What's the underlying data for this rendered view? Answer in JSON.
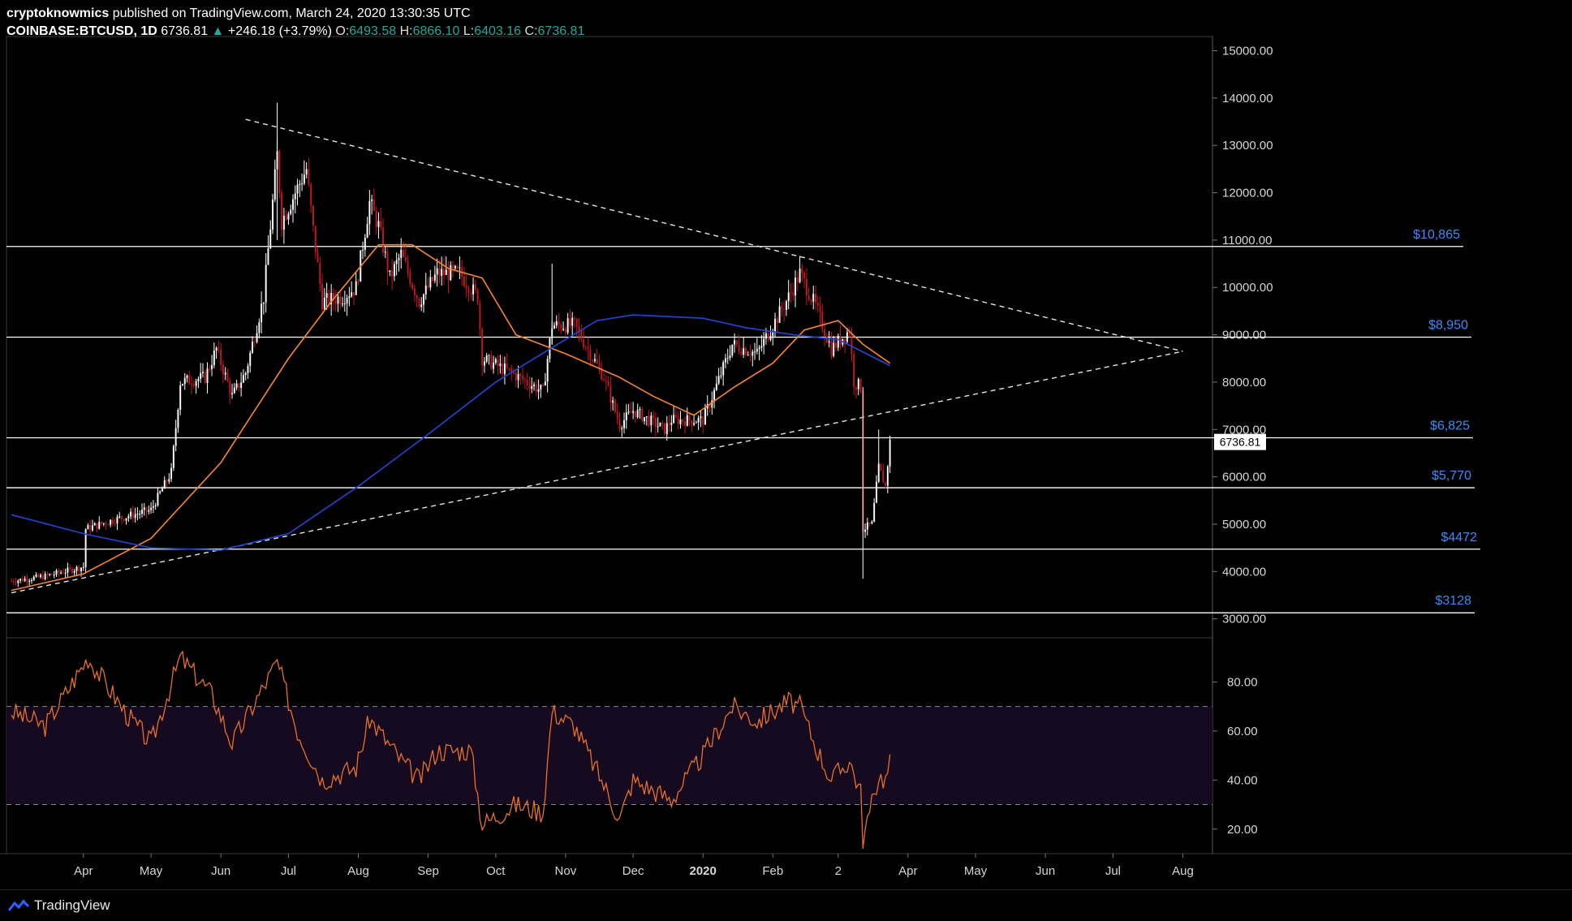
{
  "header": {
    "publisher": "cryptoknowmics",
    "published_text": "published on TradingView.com, March 24, 2020 13:30:35 UTC",
    "symbol": "COINBASE:BTCUSD, 1D",
    "last": "6736.81",
    "change_arrow": "▲",
    "change": "+246.18 (+3.79%)",
    "o_label": "O:",
    "o_value": "6493.58",
    "h_label": "H:",
    "h_value": "6866.10",
    "l_label": "L:",
    "l_value": "6403.16",
    "c_label": "C:",
    "c_value": "6736.81"
  },
  "footer": {
    "brand": "TradingView",
    "logo_icon": "tradingview-logo-icon"
  },
  "colors": {
    "background": "#000000",
    "up_candle": "#ffffff",
    "down_candle": "#c2181e",
    "ma_orange": "#f7862d",
    "ma_blue": "#2146d6",
    "level_line": "#ffffff",
    "level_label": "#3d8bf7",
    "rsi_line": "#e8702a",
    "rsi_band": "#150a1f",
    "axis_text": "#d6d6d6"
  },
  "chart_data": {
    "type": "candlestick",
    "price_axis": {
      "ylim": [
        2600,
        15300
      ],
      "ticks": [
        "15000.00",
        "14000.00",
        "13000.00",
        "12000.00",
        "11000.00",
        "10000.00",
        "9000.00",
        "8000.00",
        "7000.00",
        "6000.00",
        "5000.00",
        "4000.00",
        "3000.00"
      ]
    },
    "last_price_tag": "6736.81",
    "time_axis": {
      "start": "2019-02-28",
      "end": "2020-08-12",
      "labels": [
        {
          "text": "Apr",
          "date": "2019-04-01"
        },
        {
          "text": "May",
          "date": "2019-05-01"
        },
        {
          "text": "Jun",
          "date": "2019-06-01"
        },
        {
          "text": "Jul",
          "date": "2019-07-01"
        },
        {
          "text": "Aug",
          "date": "2019-08-01"
        },
        {
          "text": "Sep",
          "date": "2019-09-01"
        },
        {
          "text": "Oct",
          "date": "2019-10-01"
        },
        {
          "text": "Nov",
          "date": "2019-11-01"
        },
        {
          "text": "Dec",
          "date": "2019-12-01"
        },
        {
          "text": "2020",
          "date": "2020-01-01",
          "bold": true
        },
        {
          "text": "Feb",
          "date": "2020-02-01"
        },
        {
          "text": "2",
          "date": "2020-03-01"
        },
        {
          "text": "Apr",
          "date": "2020-04-01"
        },
        {
          "text": "May",
          "date": "2020-05-01"
        },
        {
          "text": "Jun",
          "date": "2020-06-01"
        },
        {
          "text": "Jul",
          "date": "2020-07-01"
        },
        {
          "text": "Aug",
          "date": "2020-08-01"
        }
      ]
    },
    "price_path": [
      [
        "2019-02-28",
        3800
      ],
      [
        "2019-03-15",
        3900
      ],
      [
        "2019-04-01",
        4100
      ],
      [
        "2019-04-02",
        4900
      ],
      [
        "2019-04-15",
        5100
      ],
      [
        "2019-05-01",
        5300
      ],
      [
        "2019-05-10",
        6100
      ],
      [
        "2019-05-14",
        8000
      ],
      [
        "2019-05-25",
        8100
      ],
      [
        "2019-05-30",
        8700
      ],
      [
        "2019-06-06",
        7700
      ],
      [
        "2019-06-12",
        8200
      ],
      [
        "2019-06-20",
        9800
      ],
      [
        "2019-06-26",
        12800
      ],
      [
        "2019-06-28",
        11400
      ],
      [
        "2019-07-03",
        11900
      ],
      [
        "2019-07-09",
        12500
      ],
      [
        "2019-07-12",
        11200
      ],
      [
        "2019-07-16",
        9700
      ],
      [
        "2019-07-25",
        9800
      ],
      [
        "2019-07-31",
        10000
      ],
      [
        "2019-08-06",
        11800
      ],
      [
        "2019-08-10",
        11300
      ],
      [
        "2019-08-15",
        10200
      ],
      [
        "2019-08-20",
        10700
      ],
      [
        "2019-08-28",
        9700
      ],
      [
        "2019-09-05",
        10300
      ],
      [
        "2019-09-15",
        10300
      ],
      [
        "2019-09-23",
        9800
      ],
      [
        "2019-09-25",
        8500
      ],
      [
        "2019-10-08",
        8200
      ],
      [
        "2019-10-22",
        7800
      ],
      [
        "2019-10-26",
        9200
      ],
      [
        "2019-11-05",
        9200
      ],
      [
        "2019-11-18",
        8100
      ],
      [
        "2019-11-25",
        7100
      ],
      [
        "2019-12-01",
        7400
      ],
      [
        "2019-12-15",
        7000
      ],
      [
        "2019-12-18",
        7200
      ],
      [
        "2020-01-01",
        7200
      ],
      [
        "2020-01-06",
        7800
      ],
      [
        "2020-01-14",
        8800
      ],
      [
        "2020-01-25",
        8600
      ],
      [
        "2020-02-08",
        9800
      ],
      [
        "2020-02-13",
        10300
      ],
      [
        "2020-02-20",
        9600
      ],
      [
        "2020-02-27",
        8700
      ],
      [
        "2020-03-06",
        9100
      ],
      [
        "2020-03-08",
        8000
      ],
      [
        "2020-03-11",
        7900
      ],
      [
        "2020-03-12",
        4900
      ],
      [
        "2020-03-16",
        5000
      ],
      [
        "2020-03-19",
        6200
      ],
      [
        "2020-03-22",
        5800
      ],
      [
        "2020-03-24",
        6736.81
      ]
    ],
    "moving_averages": [
      {
        "name": "orange",
        "color": "#f7862d",
        "points": [
          [
            "2019-02-28",
            3600
          ],
          [
            "2019-04-01",
            3950
          ],
          [
            "2019-05-01",
            4700
          ],
          [
            "2019-06-01",
            6300
          ],
          [
            "2019-07-01",
            8500
          ],
          [
            "2019-07-20",
            9700
          ],
          [
            "2019-08-10",
            10900
          ],
          [
            "2019-08-25",
            10900
          ],
          [
            "2019-09-10",
            10400
          ],
          [
            "2019-09-25",
            10200
          ],
          [
            "2019-10-10",
            9000
          ],
          [
            "2019-11-01",
            8600
          ],
          [
            "2019-11-25",
            8100
          ],
          [
            "2019-12-10",
            7700
          ],
          [
            "2019-12-28",
            7300
          ],
          [
            "2020-01-15",
            7900
          ],
          [
            "2020-02-01",
            8400
          ],
          [
            "2020-02-15",
            9100
          ],
          [
            "2020-03-01",
            9300
          ],
          [
            "2020-03-12",
            8800
          ],
          [
            "2020-03-24",
            8400
          ]
        ]
      },
      {
        "name": "blue",
        "color": "#2146d6",
        "points": [
          [
            "2019-02-28",
            5200
          ],
          [
            "2019-04-01",
            4800
          ],
          [
            "2019-05-01",
            4500
          ],
          [
            "2019-06-01",
            4450
          ],
          [
            "2019-07-01",
            4800
          ],
          [
            "2019-08-01",
            5800
          ],
          [
            "2019-09-01",
            6900
          ],
          [
            "2019-10-01",
            8000
          ],
          [
            "2019-10-25",
            8700
          ],
          [
            "2019-11-15",
            9300
          ],
          [
            "2019-12-01",
            9420
          ],
          [
            "2020-01-01",
            9350
          ],
          [
            "2020-01-20",
            9150
          ],
          [
            "2020-02-10",
            9000
          ],
          [
            "2020-03-01",
            8900
          ],
          [
            "2020-03-24",
            8350
          ]
        ]
      }
    ],
    "horizontal_levels": [
      {
        "label": "$10,865",
        "value": 10865
      },
      {
        "label": "$8,950",
        "value": 8950
      },
      {
        "label": "$6,825",
        "value": 6825
      },
      {
        "label": "$5,770",
        "value": 5770
      },
      {
        "label": "$4472",
        "value": 4472
      },
      {
        "label": "$3128",
        "value": 3128
      }
    ],
    "trendlines": [
      {
        "from": [
          "2019-06-12",
          13550
        ],
        "to": [
          "2020-08-01",
          8650
        ],
        "style": "dashed"
      },
      {
        "from": [
          "2019-02-28",
          3550
        ],
        "to": [
          "2020-08-01",
          8650
        ],
        "style": "dashed"
      }
    ],
    "rsi": {
      "ylim": [
        10,
        98
      ],
      "ticks": [
        "80.00",
        "60.00",
        "40.00",
        "20.00"
      ],
      "upper_band": 70,
      "lower_band": 30,
      "points": [
        [
          "2019-02-28",
          68
        ],
        [
          "2019-03-15",
          62
        ],
        [
          "2019-04-03",
          90
        ],
        [
          "2019-04-20",
          67
        ],
        [
          "2019-05-01",
          55
        ],
        [
          "2019-05-14",
          90
        ],
        [
          "2019-05-28",
          75
        ],
        [
          "2019-06-06",
          55
        ],
        [
          "2019-06-26",
          88
        ],
        [
          "2019-07-05",
          60
        ],
        [
          "2019-07-16",
          40
        ],
        [
          "2019-07-31",
          45
        ],
        [
          "2019-08-06",
          65
        ],
        [
          "2019-08-20",
          48
        ],
        [
          "2019-08-28",
          40
        ],
        [
          "2019-09-05",
          52
        ],
        [
          "2019-09-20",
          52
        ],
        [
          "2019-09-25",
          22
        ],
        [
          "2019-10-10",
          30
        ],
        [
          "2019-10-22",
          27
        ],
        [
          "2019-10-26",
          68
        ],
        [
          "2019-11-05",
          62
        ],
        [
          "2019-11-18",
          38
        ],
        [
          "2019-11-25",
          24
        ],
        [
          "2019-12-01",
          40
        ],
        [
          "2019-12-18",
          32
        ],
        [
          "2020-01-01",
          50
        ],
        [
          "2020-01-14",
          70
        ],
        [
          "2020-01-25",
          64
        ],
        [
          "2020-02-08",
          72
        ],
        [
          "2020-02-13",
          70
        ],
        [
          "2020-02-20",
          54
        ],
        [
          "2020-02-27",
          40
        ],
        [
          "2020-03-06",
          48
        ],
        [
          "2020-03-11",
          35
        ],
        [
          "2020-03-12",
          16
        ],
        [
          "2020-03-16",
          30
        ],
        [
          "2020-03-19",
          42
        ],
        [
          "2020-03-22",
          40
        ],
        [
          "2020-03-24",
          47
        ]
      ]
    }
  }
}
